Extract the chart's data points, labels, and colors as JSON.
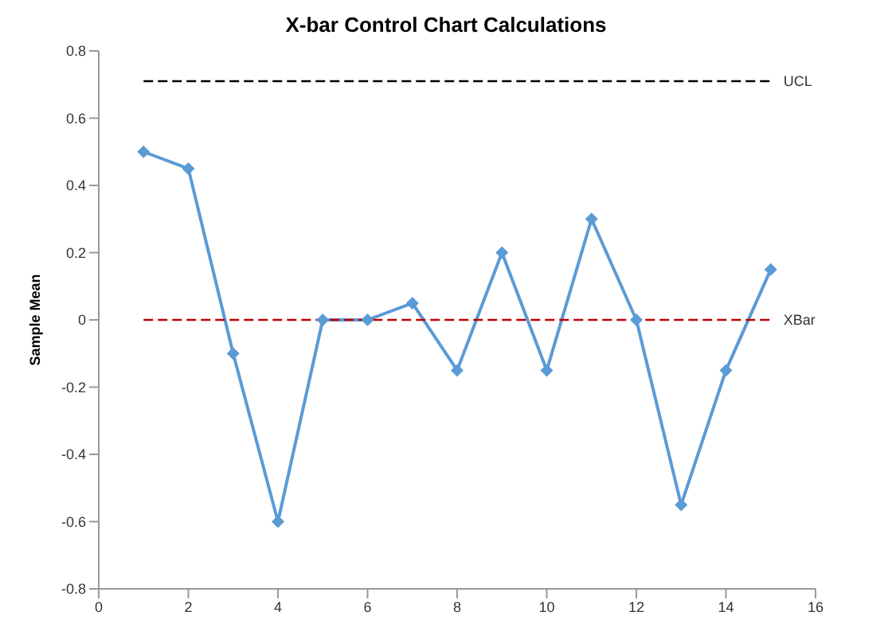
{
  "chart_data": {
    "type": "line",
    "title": "X-bar Control Chart Calculations",
    "ylabel": "Sample Mean",
    "x": [
      1,
      2,
      3,
      4,
      5,
      6,
      7,
      8,
      9,
      10,
      11,
      12,
      13,
      14,
      15
    ],
    "series": [
      {
        "color": "#5b9bd5",
        "marker": "diamond",
        "line_style": "solid",
        "values": [
          0.5,
          0.45,
          -0.1,
          -0.6,
          0,
          0,
          0.05,
          -0.15,
          0.2,
          -0.15,
          0.3,
          0,
          -0.55,
          -0.15,
          0.15
        ]
      },
      {
        "name": "UCL",
        "color": "#000000",
        "marker": "none",
        "line_style": "dashed",
        "values": [
          0.71,
          0.71,
          0.71,
          0.71,
          0.71,
          0.71,
          0.71,
          0.71,
          0.71,
          0.71,
          0.71,
          0.71,
          0.71,
          0.71,
          0.71
        ]
      },
      {
        "name": "XBar",
        "color": "#c00000",
        "marker": "none",
        "line_style": "dashed",
        "values": [
          0,
          0,
          0,
          0,
          0,
          0,
          0,
          0,
          0,
          0,
          0,
          0,
          0,
          0,
          0
        ]
      }
    ],
    "xlim": [
      0,
      16
    ],
    "xticks": [
      0,
      2,
      4,
      6,
      8,
      10,
      12,
      14,
      16
    ],
    "ylim": [
      -0.8,
      0.8
    ],
    "yticks": [
      -0.8,
      -0.6,
      -0.4,
      -0.2,
      0,
      0.2,
      0.4,
      0.6,
      0.8
    ],
    "grid": false,
    "legend": false
  }
}
